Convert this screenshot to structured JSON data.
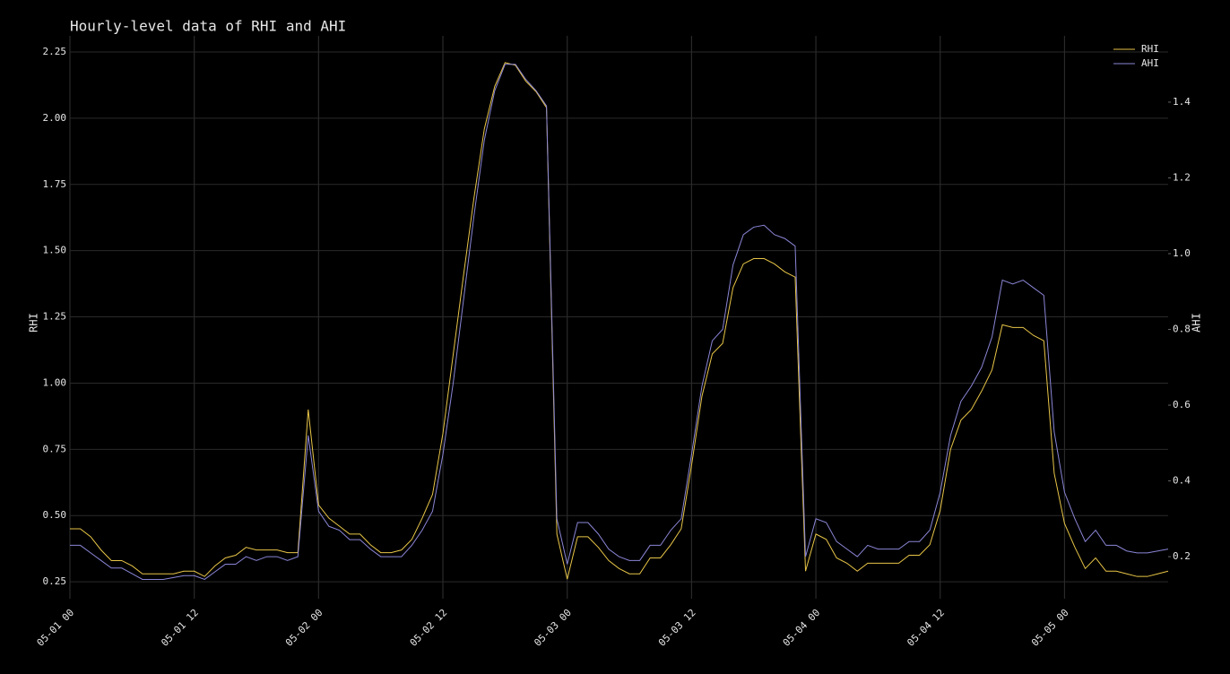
{
  "chart_data": {
    "type": "line",
    "title": "Hourly-level data of RHI and AHI",
    "ylabel": "RHI",
    "y2label": "AHI",
    "x": [
      "05-01 00",
      "05-01 01",
      "05-01 02",
      "05-01 03",
      "05-01 04",
      "05-01 05",
      "05-01 06",
      "05-01 07",
      "05-01 08",
      "05-01 09",
      "05-01 10",
      "05-01 11",
      "05-01 12",
      "05-01 13",
      "05-01 14",
      "05-01 15",
      "05-01 16",
      "05-01 17",
      "05-01 18",
      "05-01 19",
      "05-01 20",
      "05-01 21",
      "05-01 22",
      "05-01 23",
      "05-02 00",
      "05-02 01",
      "05-02 02",
      "05-02 03",
      "05-02 04",
      "05-02 05",
      "05-02 06",
      "05-02 07",
      "05-02 08",
      "05-02 09",
      "05-02 10",
      "05-02 11",
      "05-02 12",
      "05-02 13",
      "05-02 14",
      "05-02 15",
      "05-02 16",
      "05-02 17",
      "05-02 18",
      "05-02 19",
      "05-02 20",
      "05-02 21",
      "05-02 22",
      "05-02 23",
      "05-03 00",
      "05-03 01",
      "05-03 02",
      "05-03 03",
      "05-03 04",
      "05-03 05",
      "05-03 06",
      "05-03 07",
      "05-03 08",
      "05-03 09",
      "05-03 10",
      "05-03 11",
      "05-03 12",
      "05-03 13",
      "05-03 14",
      "05-03 15",
      "05-03 16",
      "05-03 17",
      "05-03 18",
      "05-03 19",
      "05-03 20",
      "05-03 21",
      "05-03 22",
      "05-03 23",
      "05-04 00",
      "05-04 01",
      "05-04 02",
      "05-04 03",
      "05-04 04",
      "05-04 05",
      "05-04 06",
      "05-04 07",
      "05-04 08",
      "05-04 09",
      "05-04 10",
      "05-04 11",
      "05-04 12",
      "05-04 13",
      "05-04 14",
      "05-04 15",
      "05-04 16",
      "05-04 17",
      "05-04 18",
      "05-04 19",
      "05-04 20",
      "05-04 21",
      "05-04 22",
      "05-04 23",
      "05-05 00",
      "05-05 01",
      "05-05 02",
      "05-05 03",
      "05-05 04",
      "05-05 05",
      "05-05 06",
      "05-05 07",
      "05-05 08",
      "05-05 09",
      "05-05 10"
    ],
    "xticks": [
      "05-01 00",
      "05-01 12",
      "05-02 00",
      "05-02 12",
      "05-03 00",
      "05-03 12",
      "05-04 00",
      "05-04 12",
      "05-05 00"
    ],
    "ylim": [
      0.186,
      2.311
    ],
    "yticks": [
      0.25,
      {
        "value": 0.5,
        "label": "0.50"
      },
      0.75,
      {
        "value": 1.0,
        "label": "1.00"
      },
      1.25,
      {
        "value": 1.5,
        "label": "1.50"
      },
      1.75,
      {
        "value": 2.0,
        "label": "2.00"
      },
      2.25
    ],
    "y2lim": [
      0.089,
      1.575
    ],
    "y2ticks": [
      0.2,
      0.4,
      0.6,
      0.8,
      {
        "value": 1.0,
        "label": "1.0"
      },
      1.2,
      1.4
    ],
    "grid": true,
    "legend": "upper right",
    "series": [
      {
        "name": "RHI",
        "color": "#e8c547",
        "values": [
          0.45,
          0.45,
          0.42,
          0.37,
          0.33,
          0.33,
          0.31,
          0.28,
          0.28,
          0.28,
          0.28,
          0.29,
          0.29,
          0.27,
          0.31,
          0.34,
          0.35,
          0.38,
          0.37,
          0.37,
          0.37,
          0.36,
          0.36,
          0.9,
          0.54,
          0.49,
          0.46,
          0.43,
          0.43,
          0.39,
          0.36,
          0.36,
          0.37,
          0.41,
          0.49,
          0.58,
          0.81,
          1.11,
          1.41,
          1.7,
          1.96,
          2.12,
          2.21,
          2.2,
          2.14,
          2.1,
          2.04,
          0.43,
          0.26,
          0.42,
          0.42,
          0.38,
          0.33,
          0.3,
          0.28,
          0.28,
          0.34,
          0.34,
          0.39,
          0.45,
          0.69,
          0.95,
          1.11,
          1.15,
          1.36,
          1.45,
          1.47,
          1.47,
          1.45,
          1.42,
          1.4,
          0.29,
          0.43,
          0.41,
          0.34,
          0.32,
          0.29,
          0.32,
          0.32,
          0.32,
          0.32,
          0.35,
          0.35,
          0.39,
          0.52,
          0.75,
          0.86,
          0.9,
          0.97,
          1.05,
          1.22,
          1.21,
          1.21,
          1.18,
          1.16,
          0.66,
          0.47,
          0.38,
          0.3,
          0.34,
          0.29,
          0.29,
          0.28,
          0.27,
          0.27,
          0.28,
          0.29
        ]
      },
      {
        "name": "AHI",
        "color": "#8a86d6",
        "axis": "y2",
        "values": [
          0.23,
          0.23,
          0.21,
          0.19,
          0.17,
          0.17,
          0.155,
          0.14,
          0.14,
          0.14,
          0.145,
          0.15,
          0.15,
          0.14,
          0.16,
          0.18,
          0.18,
          0.2,
          0.19,
          0.2,
          0.2,
          0.19,
          0.2,
          0.52,
          0.32,
          0.28,
          0.27,
          0.245,
          0.245,
          0.22,
          0.2,
          0.2,
          0.2,
          0.23,
          0.27,
          0.32,
          0.47,
          0.66,
          0.88,
          1.1,
          1.3,
          1.43,
          1.5,
          1.5,
          1.46,
          1.43,
          1.39,
          0.3,
          0.18,
          0.29,
          0.29,
          0.26,
          0.22,
          0.2,
          0.19,
          0.19,
          0.23,
          0.23,
          0.27,
          0.3,
          0.47,
          0.65,
          0.77,
          0.8,
          0.97,
          1.05,
          1.07,
          1.075,
          1.05,
          1.04,
          1.02,
          0.2,
          0.3,
          0.29,
          0.24,
          0.22,
          0.2,
          0.23,
          0.22,
          0.22,
          0.22,
          0.24,
          0.24,
          0.27,
          0.37,
          0.52,
          0.61,
          0.65,
          0.7,
          0.78,
          0.93,
          0.92,
          0.93,
          0.91,
          0.89,
          0.53,
          0.37,
          0.3,
          0.24,
          0.27,
          0.23,
          0.23,
          0.215,
          0.21,
          0.21,
          0.215,
          0.22
        ]
      }
    ]
  }
}
